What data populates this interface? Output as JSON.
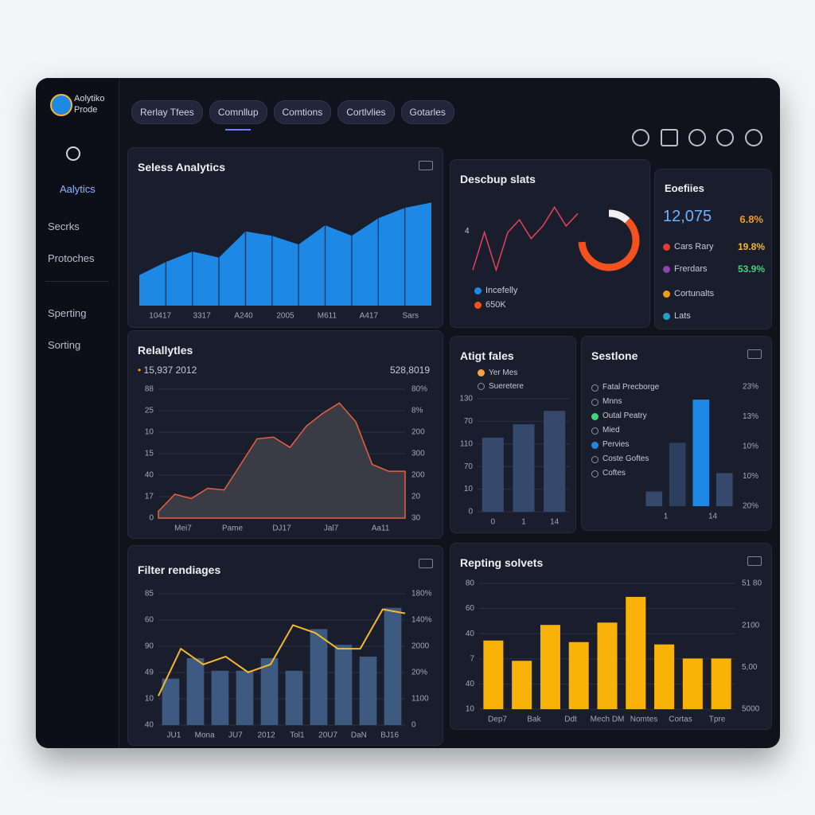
{
  "app": {
    "logo_title": "Aolytiko",
    "logo_subtitle": "Prode",
    "tabs": [
      "Rerlay Tfees",
      "Comnllup",
      "Comtions",
      "Cortlvlies",
      "Gotarles"
    ],
    "active_tab": 1,
    "menu": [
      "Aalytics",
      "Secrks",
      "Protoches",
      "Sperting",
      "Sorting"
    ],
    "active_menu": 0
  },
  "stats": {
    "title": "Eoefiies",
    "kpi": "12,075",
    "kpi_change": "6.8%",
    "rows": [
      {
        "name": "Cars Rary",
        "value": "19.8%",
        "color": "#e53935",
        "value_color": "#f5b82e"
      },
      {
        "name": "Frerdars",
        "value": "53.9%",
        "color": "#8e44ad",
        "value_color": "#43d17a"
      },
      {
        "name": "Cortunalts",
        "color": "#f39c12"
      },
      {
        "name": "Lats",
        "color": "#1fa2c4"
      }
    ]
  },
  "chart_data": [
    {
      "type": "area",
      "title": "Seless Analytics",
      "color": "#1e88e5",
      "dividers": true,
      "values": [
        35,
        50,
        62,
        55,
        85,
        80,
        70,
        92,
        80,
        100,
        112,
        118
      ],
      "x_labels": [
        "10417",
        "3317",
        "A240",
        "2005",
        "M611",
        "A417",
        "Sars"
      ]
    },
    {
      "type": "line",
      "title": "Descbup slats",
      "color": "#e2435a",
      "axis_label": "4",
      "values": [
        10,
        40,
        10,
        40,
        50,
        35,
        45,
        60,
        45,
        55
      ],
      "gauge": 62,
      "legend": [
        {
          "name": "Incefelly",
          "color": "#1e88e5"
        },
        {
          "name": "650K",
          "color": "#f4511e"
        }
      ]
    },
    {
      "type": "area",
      "title": "Relallytles",
      "color": "#3b3b45",
      "line_color": "#e8613c",
      "grid": true,
      "subtitle_left": "15,937 2012",
      "subtitle_right": "528,8019",
      "values": [
        8,
        28,
        23,
        35,
        33,
        63,
        93,
        95,
        83,
        108,
        123,
        135,
        113,
        63,
        55,
        55
      ],
      "y_labels": [
        "88",
        "25",
        "10",
        "15",
        "40",
        "17",
        "0"
      ],
      "y2_labels": [
        "80%",
        "8%",
        "200",
        "300",
        "200",
        "20",
        "30"
      ],
      "x_labels": [
        "Mei7",
        "Pame",
        "DJ17",
        "Jal7",
        "Aa11"
      ]
    },
    {
      "type": "bar",
      "title": "Atigt fales",
      "color": "#34496b",
      "grid": true,
      "values": [
        72,
        85,
        98
      ],
      "y_labels": [
        "130",
        "70",
        "110",
        "70",
        "10",
        "0"
      ],
      "x_labels": [
        "0",
        "1",
        "14"
      ],
      "legend": [
        {
          "name": "Yer Mes",
          "color": "#f4a340"
        },
        {
          "name": "Sueretere"
        }
      ]
    },
    {
      "type": "bar",
      "title": "Sestlone",
      "colors": [
        "#34496b",
        "#2d3f5e",
        "#1e88e5",
        "#34496b"
      ],
      "values": [
        16,
        69,
        116,
        36
      ],
      "y2_labels": [
        "23%",
        "13%",
        "10%",
        "10%",
        "20%"
      ],
      "x_labels": [
        "1",
        "14"
      ],
      "legend": [
        {
          "name": "Fatal Precborge"
        },
        {
          "name": "Mnns"
        },
        {
          "name": "Outal Peatry",
          "color": "#43d17a"
        },
        {
          "name": "Mied"
        },
        {
          "name": "Pervies",
          "color": "#1e88e5"
        },
        {
          "name": "Coste Goftes"
        },
        {
          "name": "Coftes"
        }
      ]
    },
    {
      "type": "combo",
      "title": "Filter rendiages",
      "color": "#3d5a80",
      "line_color": "#f5b82e",
      "grid": true,
      "values": [
        59,
        85,
        69,
        69,
        85,
        69,
        122,
        102,
        87,
        149
      ],
      "line_values": [
        37,
        97,
        77,
        87,
        67,
        77,
        127,
        117,
        97,
        97,
        147,
        142
      ],
      "y_labels": [
        "85",
        "60",
        "90",
        "49",
        "10",
        "40"
      ],
      "y2_labels": [
        "180%",
        "140%",
        "2000",
        "20%",
        "1100",
        "0"
      ],
      "x_labels": [
        "JU1",
        "Mona",
        "JU7",
        "2012",
        "Tol1",
        "20U7",
        "DaN",
        "BJ16"
      ]
    },
    {
      "type": "bar",
      "title": "Repting solvets",
      "color": "#f9b208",
      "grid": true,
      "values": [
        88,
        62,
        108,
        86,
        111,
        144,
        83,
        65,
        65
      ],
      "y_labels": [
        "80",
        "60",
        "40",
        "7",
        "40",
        "10"
      ],
      "y2_labels": [
        "51 80",
        "2100",
        "5,00",
        "5000"
      ],
      "x_labels": [
        "Dep7",
        "Bak",
        "Ddt",
        "Mech DM",
        "Nomtes",
        "Cortas",
        "Tpre"
      ]
    }
  ]
}
